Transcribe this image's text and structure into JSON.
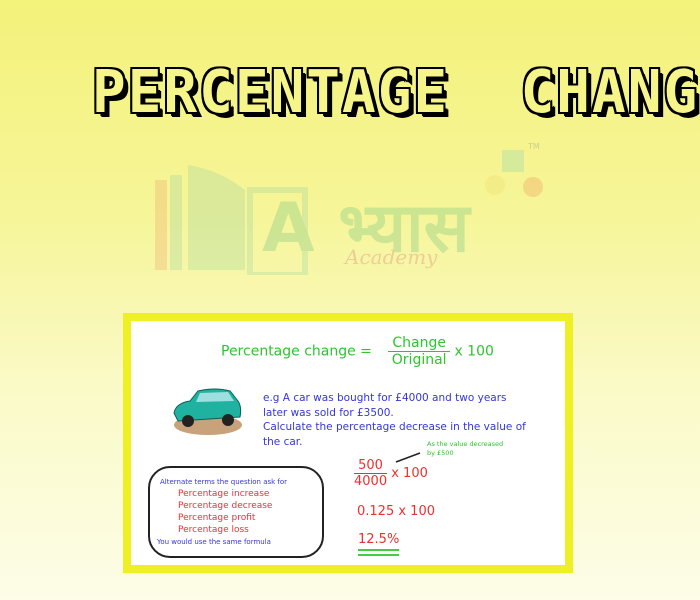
{
  "title": "PERCENTAGE  CHANGE",
  "logo": {
    "main": "A भ्यास",
    "sub": "Academy",
    "tm": "TM"
  },
  "formula": {
    "lhs": "Percentage change =",
    "numerator": "Change",
    "denominator": "Original",
    "multiplier": "x 100"
  },
  "example": {
    "lines": [
      "e.g  A car was bought for £4000 and two years",
      "later was sold for £3500.",
      "Calculate the percentage decrease in the value of",
      "the car."
    ]
  },
  "annotation": {
    "lines": [
      "As the value decreased",
      "by £500"
    ]
  },
  "working": {
    "numerator": "500",
    "denominator": "4000",
    "multiplier": "x 100",
    "step2": "0.125 x 100",
    "answer": "12.5%"
  },
  "alternate": {
    "header": "Alternate terms the question ask for",
    "terms": [
      "Percentage increase",
      "Percentage decrease",
      "Percentage profit",
      "Percentage loss"
    ],
    "footer": "You would use the same formula"
  },
  "colors": {
    "frame": "#eef023",
    "green": "#2fc42f",
    "blue": "#3535dd",
    "red": "#ee3030"
  }
}
